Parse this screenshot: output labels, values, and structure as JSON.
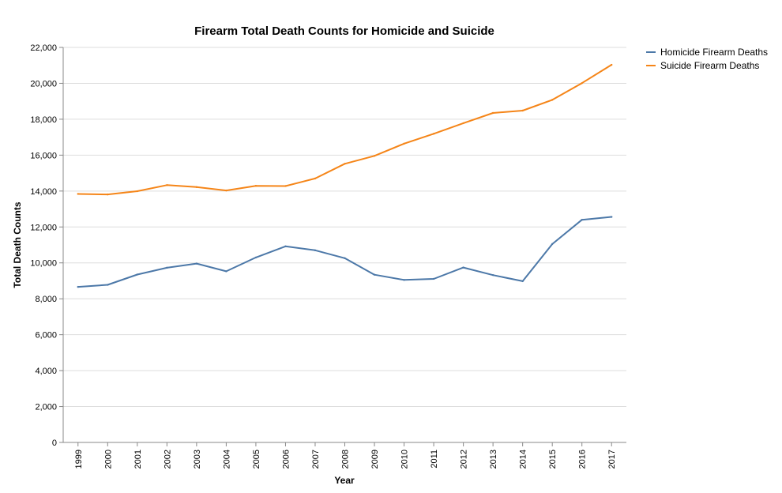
{
  "chart_data": {
    "type": "line",
    "title": "Firearm Total Death Counts for Homicide and Suicide",
    "xlabel": "Year",
    "ylabel": "Total Death Counts",
    "ylim": [
      0,
      22000
    ],
    "yticks": [
      "0",
      "2,000",
      "4,000",
      "6,000",
      "8,000",
      "10,000",
      "12,000",
      "14,000",
      "16,000",
      "18,000",
      "20,000",
      "22,000"
    ],
    "categories": [
      "1999",
      "2000",
      "2001",
      "2002",
      "2003",
      "2004",
      "2005",
      "2006",
      "2007",
      "2008",
      "2009",
      "2010",
      "2011",
      "2012",
      "2013",
      "2014",
      "2015",
      "2016",
      "2017"
    ],
    "grid": true,
    "legend_position": "top-right",
    "series": [
      {
        "name": "Homicide Firearm Deaths",
        "color": "#4c78a8",
        "values": [
          8663,
          8776,
          9351,
          9730,
          9960,
          9530,
          10300,
          10920,
          10700,
          10260,
          9340,
          9050,
          9110,
          9740,
          9320,
          8980,
          11050,
          12400,
          12560
        ]
      },
      {
        "name": "Suicide Firearm Deaths",
        "color": "#f58518",
        "values": [
          13840,
          13810,
          13990,
          14330,
          14220,
          14030,
          14290,
          14280,
          14700,
          15520,
          15960,
          16640,
          17190,
          17780,
          18350,
          18480,
          19080,
          20010,
          21030
        ]
      }
    ]
  }
}
